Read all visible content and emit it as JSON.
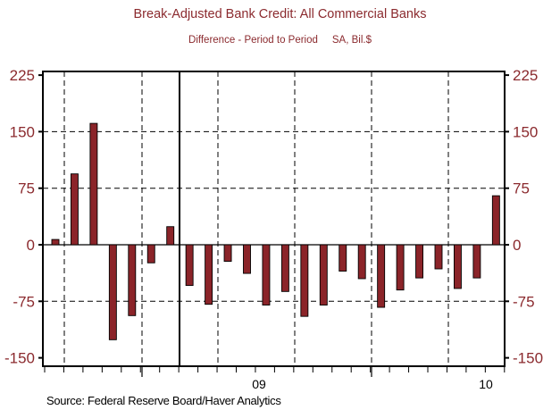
{
  "chart_data": {
    "type": "bar",
    "title": "Break-Adjusted Bank Credit: All Commercial Banks",
    "subtitle": "Difference - Period to Period     SA, Bil.$",
    "values": [
      7,
      94,
      161,
      -126,
      -94,
      -24,
      24,
      -54,
      -79,
      -22,
      -38,
      -80,
      -62,
      -95,
      -80,
      -35,
      -45,
      -83,
      -60,
      -44,
      -32,
      -58,
      -44,
      65
    ],
    "ylim": [
      -150,
      225
    ],
    "yticks": [
      225,
      150,
      75,
      0,
      -75,
      -150
    ],
    "ytick_labels": [
      "225",
      "150",
      "75",
      "0",
      "-75",
      "-150"
    ],
    "x_tick_labels": [
      "09",
      "10"
    ],
    "grid": true,
    "colors": {
      "bar": "#8B2429",
      "text": "#8B2A2E"
    }
  },
  "source": "Source:  Federal Reserve Board/Haver Analytics"
}
